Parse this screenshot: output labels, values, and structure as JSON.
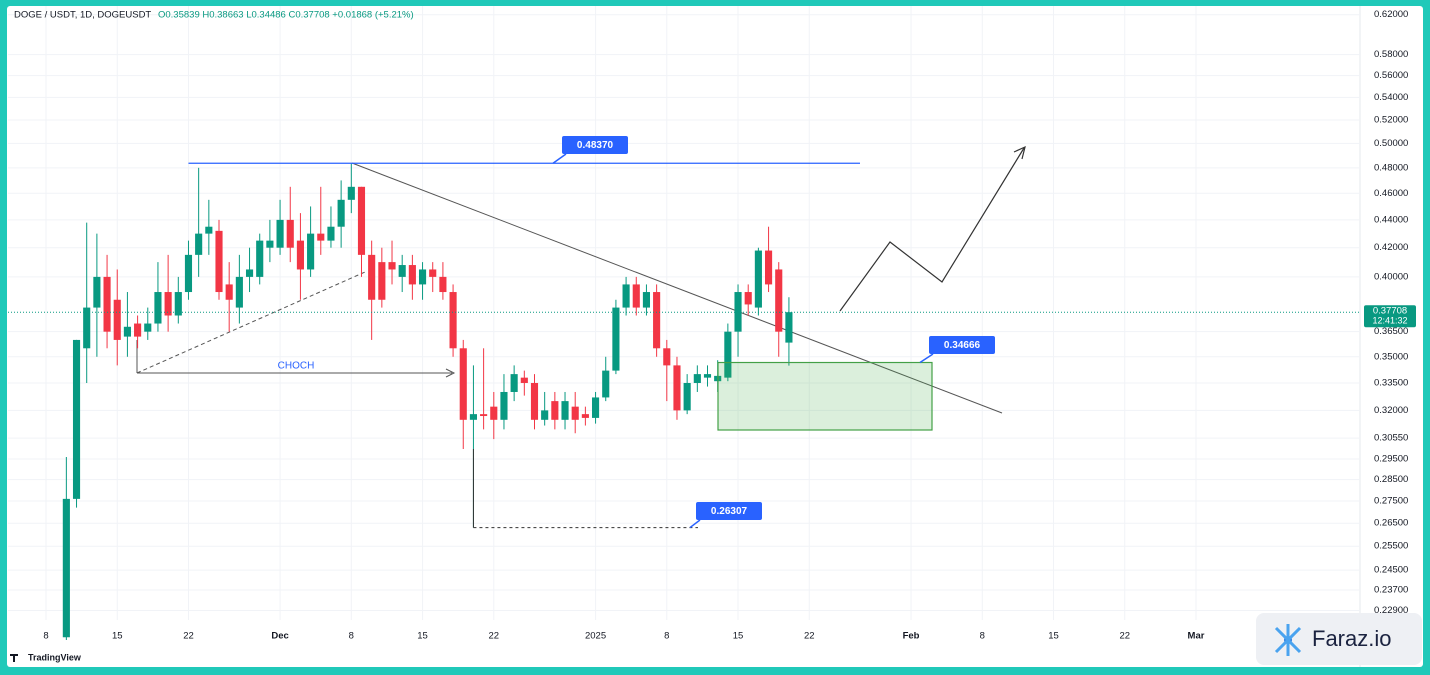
{
  "chart_data": {
    "type": "candlestick",
    "header": {
      "symbol": "DOGE / USDT, 1D, DOGEUSDT",
      "ohlc": "O0.35839 H0.38663 L0.34486 C0.37708 +0.01868 (+5.21%)"
    },
    "log_scale": true,
    "grid": true,
    "up_color": "#089981",
    "down_color": "#f23645",
    "ylim": [
      0.218,
      0.627
    ],
    "yticks": [
      {
        "value": 0.62,
        "label": "0.62000"
      },
      {
        "value": 0.58,
        "label": "0.58000"
      },
      {
        "value": 0.56,
        "label": "0.56000"
      },
      {
        "value": 0.54,
        "label": "0.54000"
      },
      {
        "value": 0.52,
        "label": "0.52000"
      },
      {
        "value": 0.5,
        "label": "0.50000"
      },
      {
        "value": 0.48,
        "label": "0.48000"
      },
      {
        "value": 0.46,
        "label": "0.46000"
      },
      {
        "value": 0.44,
        "label": "0.44000"
      },
      {
        "value": 0.42,
        "label": "0.42000"
      },
      {
        "value": 0.4,
        "label": "0.40000"
      },
      {
        "value": 0.365,
        "label": "0.36500"
      },
      {
        "value": 0.35,
        "label": "0.35000"
      },
      {
        "value": 0.335,
        "label": "0.33500"
      },
      {
        "value": 0.32,
        "label": "0.32000"
      },
      {
        "value": 0.3055,
        "label": "0.30550"
      },
      {
        "value": 0.295,
        "label": "0.29500"
      },
      {
        "value": 0.285,
        "label": "0.28500"
      },
      {
        "value": 0.275,
        "label": "0.27500"
      },
      {
        "value": 0.265,
        "label": "0.26500"
      },
      {
        "value": 0.255,
        "label": "0.25500"
      },
      {
        "value": 0.245,
        "label": "0.24500"
      },
      {
        "value": 0.237,
        "label": "0.23700"
      },
      {
        "value": 0.229,
        "label": "0.22900"
      }
    ],
    "categories": [
      "8",
      null,
      null,
      null,
      null,
      null,
      null,
      "15",
      null,
      null,
      null,
      null,
      null,
      null,
      "22",
      null,
      null,
      null,
      null,
      null,
      null,
      null,
      null,
      "Dec",
      null,
      null,
      null,
      null,
      null,
      null,
      "8",
      null,
      null,
      null,
      null,
      null,
      null,
      "15",
      null,
      null,
      null,
      null,
      null,
      null,
      "22",
      null,
      null,
      null,
      null,
      null,
      null,
      null,
      null,
      null,
      "2025",
      null,
      null,
      null,
      null,
      null,
      null,
      "8",
      null,
      null,
      null,
      null,
      null,
      null,
      "15",
      null,
      null,
      null,
      null,
      null,
      null,
      "22",
      null,
      null,
      null,
      null,
      null,
      null,
      null,
      null,
      null,
      "Feb",
      null,
      null,
      null,
      null,
      null,
      null,
      "8",
      null,
      null,
      null,
      null,
      null,
      null,
      "15",
      null,
      null,
      null,
      null,
      null,
      null,
      "22",
      null,
      null,
      null,
      null,
      null,
      null,
      "Mar"
    ],
    "open": [
      null,
      null,
      0.219,
      0.276,
      0.355,
      0.38,
      0.4,
      0.385,
      0.362,
      0.37,
      0.365,
      0.37,
      0.39,
      0.375,
      0.39,
      0.415,
      0.43,
      0.432,
      0.395,
      0.38,
      0.4,
      0.4,
      0.42,
      0.42,
      0.44,
      0.425,
      0.405,
      0.43,
      0.425,
      0.435,
      0.455,
      0.465,
      0.415,
      0.41,
      0.41,
      0.4,
      0.408,
      0.395,
      0.405,
      0.4,
      0.39,
      0.355,
      0.315,
      0.318,
      0.322,
      0.315,
      0.33,
      0.338,
      0.335,
      0.315,
      0.325,
      0.315,
      0.322,
      0.318,
      0.316,
      0.327,
      0.342,
      0.38,
      0.395,
      0.38,
      0.39,
      0.355,
      0.345,
      0.32,
      0.335,
      0.338,
      0.336,
      0.338,
      0.365,
      0.39,
      0.38,
      0.418,
      0.405,
      0.35839,
      null,
      null,
      null,
      null,
      null,
      null,
      null,
      null,
      null,
      null,
      null,
      null,
      null,
      null,
      null,
      null,
      null,
      null,
      null,
      null,
      null,
      null,
      null,
      null,
      null,
      null,
      null,
      null,
      null,
      null,
      null,
      null,
      null,
      null,
      null,
      null,
      null,
      null,
      null,
      null
    ],
    "high": [
      null,
      null,
      0.296,
      0.36,
      0.438,
      0.43,
      0.415,
      0.405,
      0.39,
      0.375,
      0.38,
      0.41,
      0.415,
      0.4,
      0.425,
      0.48,
      0.455,
      0.44,
      0.41,
      0.415,
      0.42,
      0.43,
      0.44,
      0.455,
      0.465,
      0.445,
      0.45,
      0.465,
      0.45,
      0.47,
      0.4837,
      0.465,
      0.425,
      0.42,
      0.425,
      0.415,
      0.415,
      0.41,
      0.41,
      0.41,
      0.395,
      0.36,
      0.345,
      0.355,
      0.33,
      0.34,
      0.345,
      0.342,
      0.34,
      0.33,
      0.33,
      0.33,
      0.33,
      0.322,
      0.33,
      0.35,
      0.385,
      0.4,
      0.4,
      0.395,
      0.395,
      0.36,
      0.35,
      0.34,
      0.345,
      0.345,
      0.348,
      0.37,
      0.395,
      0.395,
      0.42,
      0.435,
      0.41,
      0.38663,
      null,
      null,
      null,
      null,
      null,
      null,
      null,
      null,
      null,
      null,
      null,
      null,
      null,
      null,
      null,
      null,
      null,
      null,
      null,
      null,
      null,
      null,
      null,
      null,
      null,
      null,
      null,
      null,
      null,
      null,
      null,
      null,
      null,
      null,
      null,
      null,
      null,
      null,
      null,
      null
    ],
    "low": [
      null,
      null,
      0.218,
      0.272,
      0.335,
      0.35,
      0.355,
      0.345,
      0.35,
      0.355,
      0.36,
      0.365,
      0.365,
      0.37,
      0.385,
      0.4,
      0.415,
      0.385,
      0.365,
      0.37,
      0.39,
      0.395,
      0.41,
      0.415,
      0.41,
      0.385,
      0.4,
      0.415,
      0.42,
      0.42,
      0.445,
      0.4,
      0.36,
      0.38,
      0.395,
      0.39,
      0.385,
      0.385,
      0.39,
      0.385,
      0.35,
      0.3,
      0.26307,
      0.31,
      0.305,
      0.31,
      0.325,
      0.328,
      0.31,
      0.312,
      0.31,
      0.31,
      0.308,
      0.312,
      0.313,
      0.325,
      0.34,
      0.375,
      0.375,
      0.375,
      0.35,
      0.325,
      0.315,
      0.318,
      0.33,
      0.333,
      0.33,
      0.336,
      0.35,
      0.375,
      0.375,
      0.39,
      0.35,
      0.34486,
      null,
      null,
      null,
      null,
      null,
      null,
      null,
      null,
      null,
      null,
      null,
      null,
      null,
      null,
      null,
      null,
      null,
      null,
      null,
      null,
      null,
      null,
      null,
      null,
      null,
      null,
      null,
      null,
      null,
      null,
      null,
      null,
      null,
      null,
      null,
      null,
      null,
      null,
      null,
      null
    ],
    "close": [
      null,
      null,
      0.276,
      0.36,
      0.38,
      0.4,
      0.365,
      0.36,
      0.368,
      0.362,
      0.37,
      0.39,
      0.375,
      0.39,
      0.415,
      0.43,
      0.435,
      0.39,
      0.385,
      0.4,
      0.405,
      0.425,
      0.425,
      0.44,
      0.42,
      0.405,
      0.43,
      0.425,
      0.435,
      0.455,
      0.465,
      0.415,
      0.385,
      0.385,
      0.405,
      0.408,
      0.395,
      0.405,
      0.4,
      0.39,
      0.355,
      0.315,
      0.318,
      0.317,
      0.315,
      0.33,
      0.34,
      0.335,
      0.315,
      0.32,
      0.315,
      0.325,
      0.315,
      0.316,
      0.327,
      0.342,
      0.38,
      0.395,
      0.38,
      0.39,
      0.355,
      0.345,
      0.32,
      0.335,
      0.34,
      0.34,
      0.339,
      0.365,
      0.39,
      0.382,
      0.418,
      0.395,
      0.365,
      0.37708,
      null,
      null,
      null,
      null,
      null,
      null,
      null,
      null,
      null,
      null,
      null,
      null,
      null,
      null,
      null,
      null,
      null,
      null,
      null,
      null,
      null,
      null,
      null,
      null,
      null,
      null,
      null,
      null,
      null,
      null,
      null,
      null,
      null,
      null,
      null,
      null,
      null,
      null,
      null,
      null
    ],
    "levels": [
      {
        "value": 0.4837,
        "label": "0.48370"
      },
      0.34666,
      0.26307
    ],
    "last_price": 0.37708,
    "countdown": "12:41:32",
    "annotation": "CHOCH",
    "brand": "TradingView",
    "watermark": "Faraz.io"
  }
}
